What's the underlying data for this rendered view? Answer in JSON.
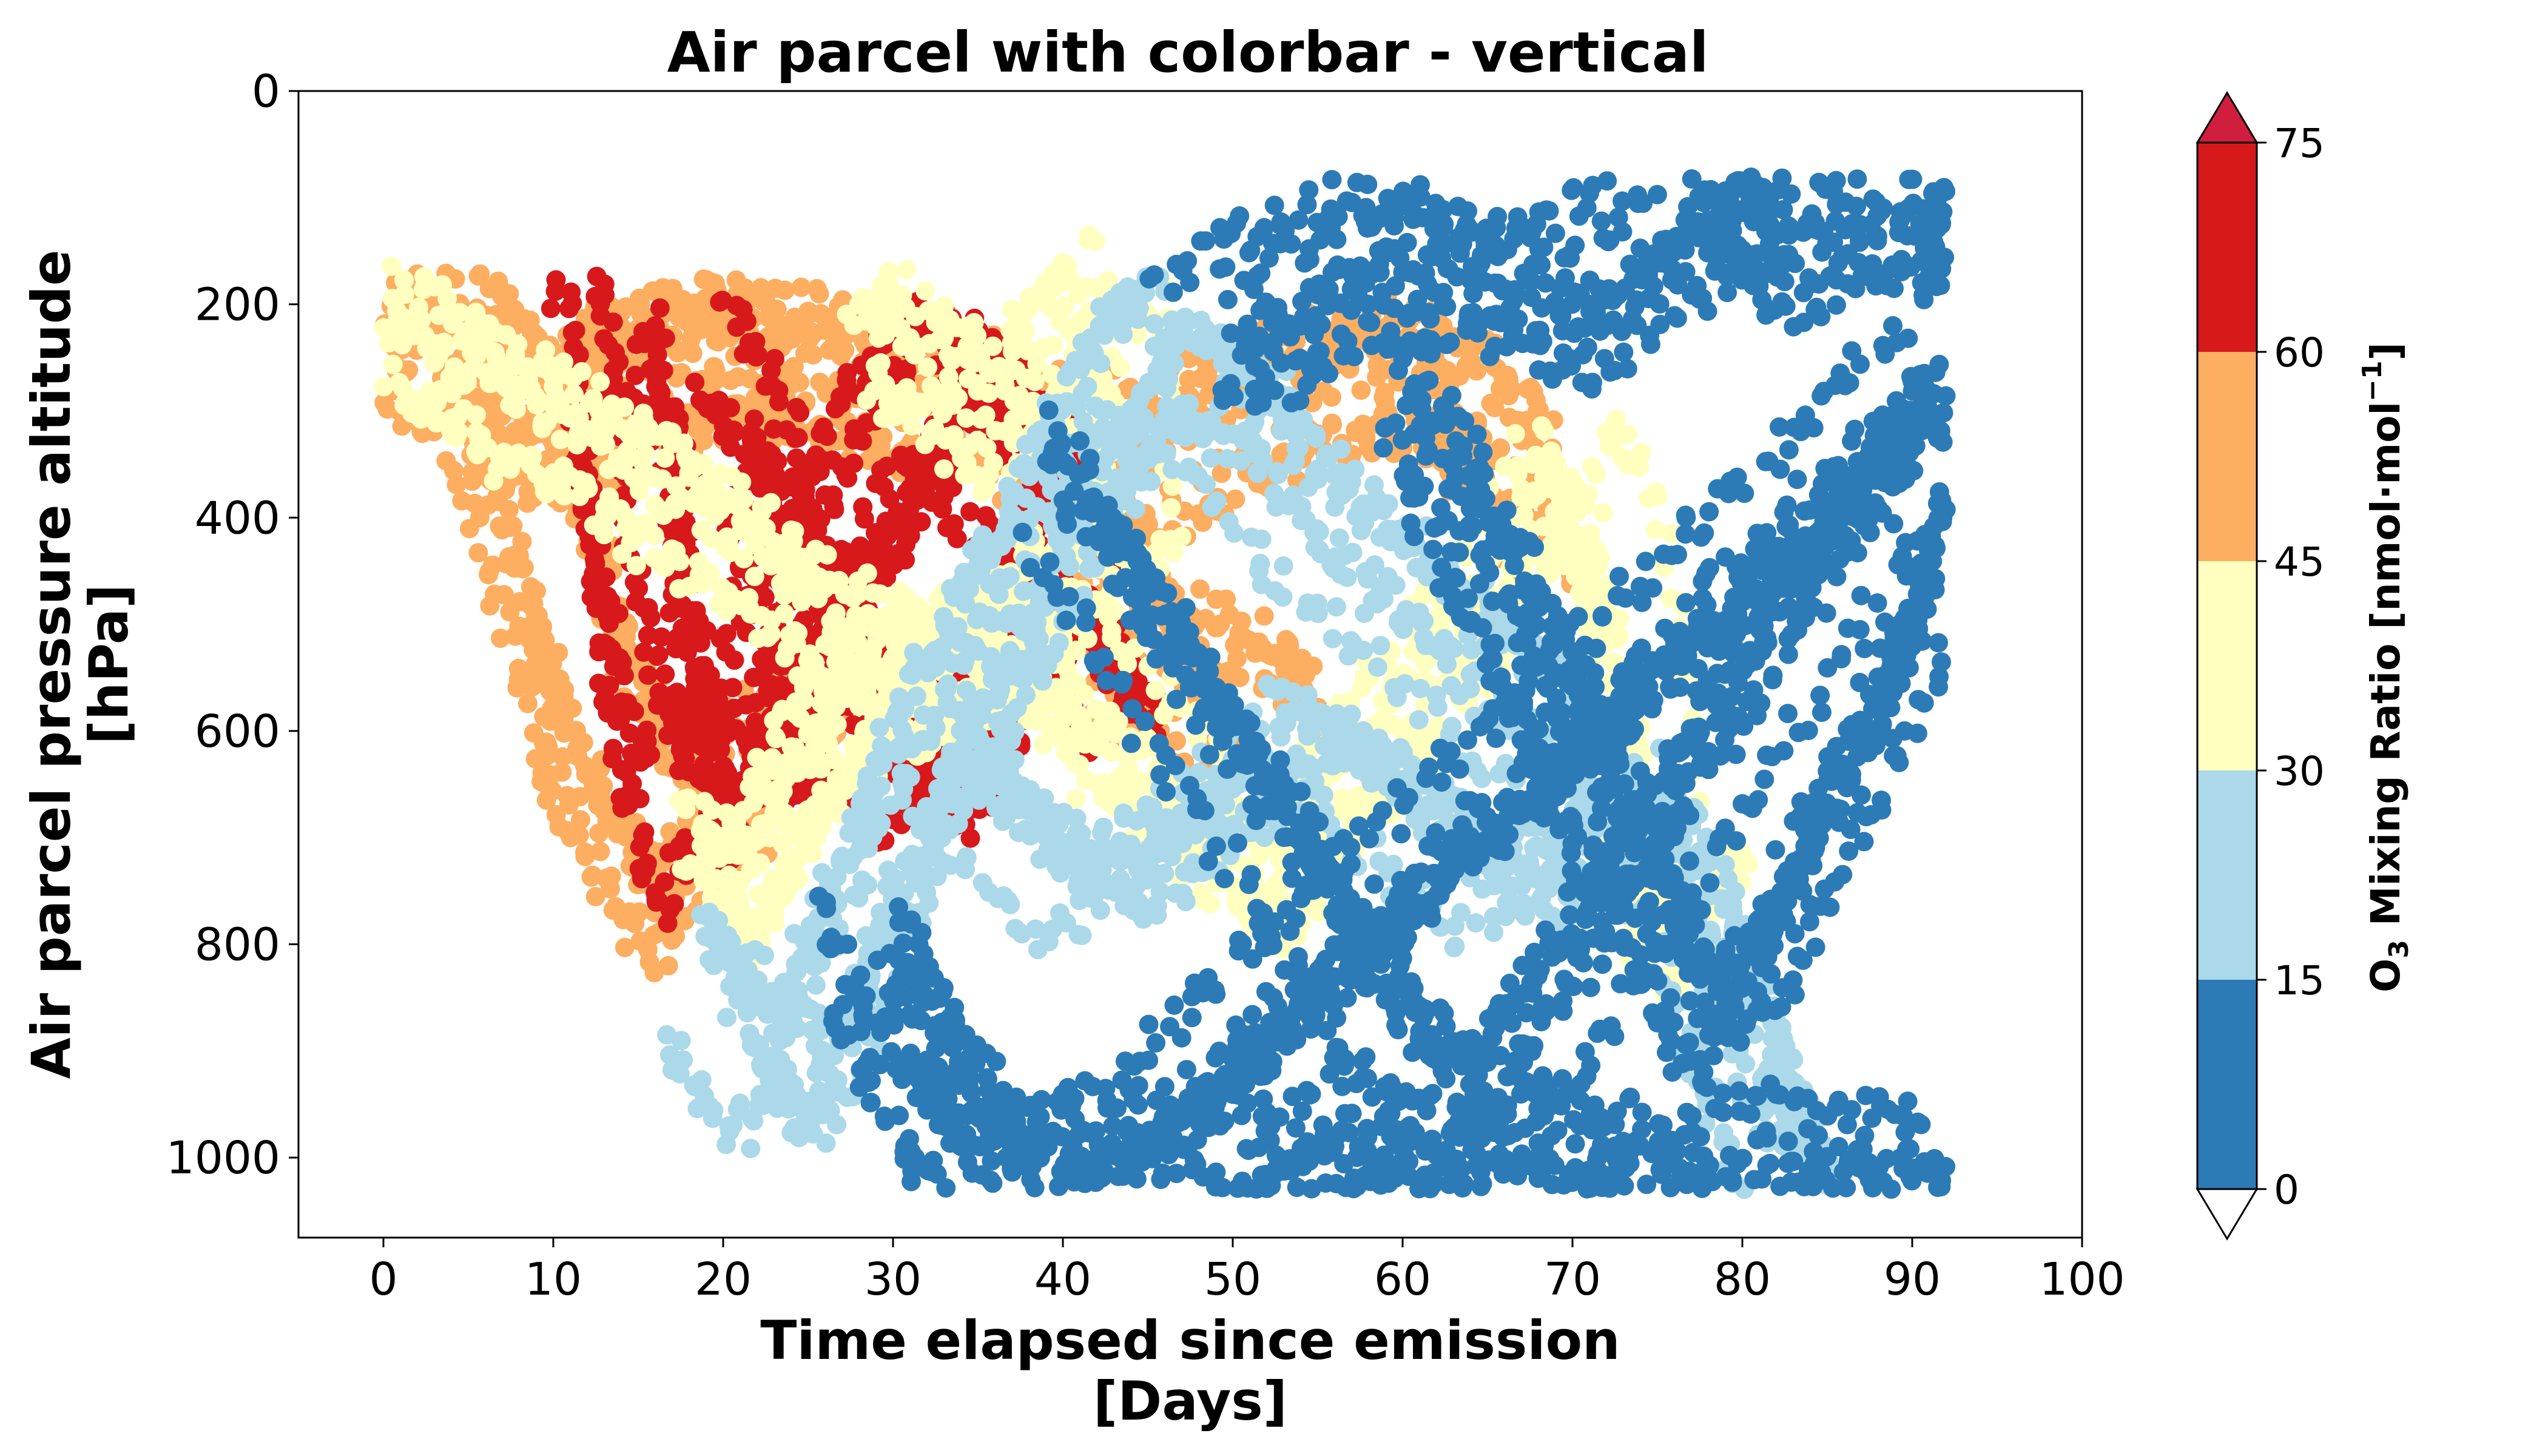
{
  "chart_data": {
    "type": "scatter",
    "title": "Air parcel with colorbar - vertical",
    "xlabel": "Time elapsed since emission",
    "xunit": "[Days]",
    "ylabel": "Air parcel pressure altitude",
    "yunit": "[hPa]",
    "xlim": [
      -5,
      100
    ],
    "ylim": [
      1075,
      0
    ],
    "y_inverted": true,
    "xticks": [
      0,
      10,
      20,
      30,
      40,
      50,
      60,
      70,
      80,
      90,
      100
    ],
    "yticks": [
      0,
      200,
      400,
      600,
      800,
      1000
    ],
    "grid": false,
    "colorbar": {
      "label_pre": "O",
      "label_sub": "3",
      "label_main": " Mixing Ratio [nmol·mol",
      "label_sup": "−1",
      "label_post": "]",
      "boundaries": [
        0,
        15,
        30,
        45,
        60,
        75
      ],
      "colors": [
        "#2c7bb6",
        "#abd9e9",
        "#ffffbf",
        "#fdae61",
        "#d7191c"
      ],
      "extend_under_color": "#ffffff",
      "extend_over_color": "#d01e3e",
      "orientation": "vertical"
    },
    "trajectory_groups": [
      {
        "range": "45-60",
        "points": [
          [
            0,
            250
          ],
          [
            3,
            240
          ],
          [
            6,
            250
          ],
          [
            8,
            300
          ],
          [
            10,
            320
          ],
          [
            12,
            280
          ],
          [
            15,
            260
          ],
          [
            18,
            250
          ],
          [
            20,
            245
          ],
          [
            23,
            250
          ],
          [
            26,
            260
          ],
          [
            30,
            280
          ],
          [
            35,
            300
          ],
          [
            40,
            320
          ],
          [
            45,
            360
          ],
          [
            50,
            300
          ],
          [
            55,
            270
          ],
          [
            60,
            260
          ],
          [
            63,
            285
          ],
          [
            66,
            330
          ],
          [
            68,
            400
          ]
        ]
      },
      {
        "range": "45-60",
        "points": [
          [
            6,
            300
          ],
          [
            8,
            400
          ],
          [
            10,
            480
          ],
          [
            11,
            560
          ],
          [
            12,
            600
          ],
          [
            14,
            660
          ],
          [
            16,
            720
          ],
          [
            18,
            760
          ],
          [
            20,
            700
          ],
          [
            22,
            620
          ],
          [
            26,
            580
          ],
          [
            30,
            600
          ],
          [
            35,
            560
          ],
          [
            40,
            520
          ],
          [
            45,
            550
          ],
          [
            50,
            580
          ],
          [
            52,
            620
          ]
        ]
      },
      {
        "range": "60-75",
        "points": [
          [
            13,
            250
          ],
          [
            14,
            320
          ],
          [
            15,
            400
          ],
          [
            15,
            480
          ],
          [
            16,
            560
          ],
          [
            17,
            640
          ],
          [
            18,
            700
          ],
          [
            20,
            640
          ],
          [
            22,
            660
          ],
          [
            24,
            560
          ],
          [
            26,
            480
          ],
          [
            28,
            420
          ],
          [
            30,
            360
          ],
          [
            32,
            300
          ],
          [
            34,
            280
          ],
          [
            36,
            330
          ],
          [
            38,
            370
          ],
          [
            40,
            400
          ]
        ]
      },
      {
        "range": "60-75",
        "points": [
          [
            20,
            270
          ],
          [
            22,
            320
          ],
          [
            24,
            390
          ],
          [
            25,
            440
          ],
          [
            26,
            500
          ],
          [
            28,
            540
          ],
          [
            30,
            600
          ],
          [
            32,
            620
          ],
          [
            34,
            580
          ],
          [
            36,
            520
          ],
          [
            38,
            460
          ],
          [
            40,
            420
          ],
          [
            42,
            490
          ],
          [
            44,
            540
          ]
        ]
      },
      {
        "range": "30-45",
        "points": [
          [
            2,
            230
          ],
          [
            5,
            260
          ],
          [
            9,
            300
          ],
          [
            13,
            330
          ],
          [
            17,
            380
          ],
          [
            21,
            420
          ],
          [
            25,
            470
          ],
          [
            29,
            520
          ],
          [
            33,
            560
          ],
          [
            37,
            520
          ],
          [
            41,
            470
          ],
          [
            44,
            420
          ],
          [
            43,
            200
          ],
          [
            40,
            260
          ],
          [
            36,
            320
          ],
          [
            32,
            240
          ],
          [
            30,
            230
          ]
        ]
      },
      {
        "range": "30-45",
        "points": [
          [
            20,
            720
          ],
          [
            22,
            760
          ],
          [
            24,
            700
          ],
          [
            26,
            640
          ],
          [
            28,
            600
          ],
          [
            30,
            560
          ],
          [
            34,
            540
          ],
          [
            38,
            520
          ],
          [
            42,
            600
          ],
          [
            46,
            660
          ],
          [
            50,
            700
          ],
          [
            54,
            750
          ],
          [
            58,
            640
          ],
          [
            62,
            560
          ],
          [
            66,
            480
          ],
          [
            70,
            380
          ],
          [
            72,
            420
          ],
          [
            74,
            560
          ],
          [
            76,
            820
          ],
          [
            78,
            760
          ]
        ]
      },
      {
        "range": "15-30",
        "points": [
          [
            20,
            820
          ],
          [
            22,
            880
          ],
          [
            24,
            910
          ],
          [
            26,
            860
          ],
          [
            28,
            780
          ],
          [
            30,
            700
          ],
          [
            32,
            620
          ],
          [
            34,
            560
          ],
          [
            36,
            500
          ],
          [
            38,
            440
          ],
          [
            40,
            380
          ],
          [
            42,
            320
          ],
          [
            44,
            260
          ],
          [
            46,
            240
          ],
          [
            50,
            280
          ],
          [
            54,
            360
          ],
          [
            58,
            420
          ],
          [
            62,
            480
          ],
          [
            66,
            540
          ],
          [
            70,
            600
          ]
        ]
      },
      {
        "range": "15-30",
        "points": [
          [
            34,
            620
          ],
          [
            38,
            680
          ],
          [
            42,
            740
          ],
          [
            46,
            700
          ],
          [
            50,
            640
          ],
          [
            54,
            580
          ],
          [
            58,
            620
          ],
          [
            62,
            680
          ],
          [
            66,
            740
          ],
          [
            70,
            700
          ],
          [
            74,
            640
          ],
          [
            78,
            760
          ],
          [
            80,
            860
          ],
          [
            82,
            960
          ],
          [
            83,
            990
          ]
        ]
      },
      {
        "range": "0-15",
        "points": [
          [
            28,
            800
          ],
          [
            30,
            880
          ],
          [
            32,
            940
          ],
          [
            34,
            980
          ],
          [
            36,
            1010
          ],
          [
            40,
            1000
          ],
          [
            44,
            980
          ],
          [
            48,
            920
          ],
          [
            52,
            860
          ],
          [
            56,
            800
          ],
          [
            60,
            740
          ],
          [
            64,
            680
          ],
          [
            68,
            620
          ],
          [
            72,
            560
          ],
          [
            76,
            500
          ],
          [
            80,
            440
          ],
          [
            84,
            380
          ],
          [
            88,
            320
          ],
          [
            92,
            260
          ]
        ]
      },
      {
        "range": "0-15",
        "points": [
          [
            48,
            230
          ],
          [
            52,
            200
          ],
          [
            56,
            160
          ],
          [
            60,
            150
          ],
          [
            64,
            170
          ],
          [
            68,
            200
          ],
          [
            72,
            160
          ],
          [
            76,
            110
          ],
          [
            78,
            90
          ],
          [
            80,
            140
          ],
          [
            84,
            120
          ],
          [
            88,
            110
          ],
          [
            90,
            105
          ],
          [
            92,
            120
          ]
        ]
      },
      {
        "range": "0-15",
        "points": [
          [
            50,
            980
          ],
          [
            54,
            1000
          ],
          [
            58,
            960
          ],
          [
            62,
            990
          ],
          [
            66,
            1010
          ],
          [
            70,
            980
          ],
          [
            74,
            1000
          ],
          [
            78,
            1020
          ],
          [
            82,
            990
          ],
          [
            86,
            1010
          ],
          [
            90,
            1000
          ],
          [
            92,
            1020
          ]
        ]
      },
      {
        "range": "0-15",
        "points": [
          [
            40,
            360
          ],
          [
            44,
            460
          ],
          [
            48,
            560
          ],
          [
            52,
            660
          ],
          [
            56,
            760
          ],
          [
            60,
            860
          ],
          [
            64,
            940
          ],
          [
            68,
            880
          ],
          [
            72,
            780
          ],
          [
            76,
            680
          ],
          [
            80,
            580
          ],
          [
            84,
            480
          ],
          [
            88,
            380
          ],
          [
            92,
            300
          ]
        ]
      },
      {
        "range": "0-15",
        "points": [
          [
            60,
            300
          ],
          [
            63,
            400
          ],
          [
            66,
            500
          ],
          [
            69,
            600
          ],
          [
            72,
            700
          ],
          [
            75,
            800
          ],
          [
            78,
            900
          ],
          [
            81,
            820
          ],
          [
            84,
            720
          ],
          [
            87,
            620
          ],
          [
            90,
            520
          ],
          [
            92,
            420
          ]
        ]
      }
    ]
  }
}
